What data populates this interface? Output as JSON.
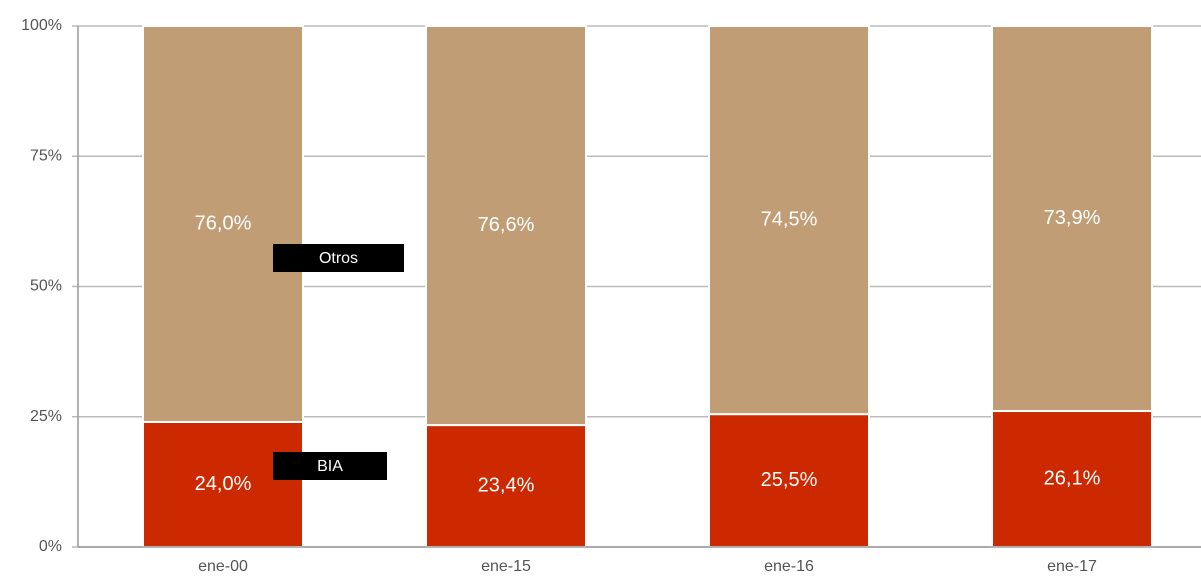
{
  "chart_data": {
    "type": "stacked_bar",
    "categories": [
      "ene-00",
      "ene-15",
      "ene-16",
      "ene-17"
    ],
    "series": [
      {
        "name": "BIA",
        "color": "#cc2900",
        "values": [
          24.0,
          23.4,
          25.5,
          26.1
        ],
        "value_labels": [
          "24,0%",
          "23,4%",
          "25,5%",
          "26,1%"
        ]
      },
      {
        "name": "Otros",
        "color": "#c19d76",
        "values": [
          76.0,
          76.6,
          74.5,
          73.9
        ],
        "value_labels": [
          "76,0%",
          "76,6%",
          "74,5%",
          "73,9%"
        ]
      }
    ],
    "ylim": [
      0,
      100
    ],
    "yticks": [
      {
        "value": 0,
        "label": "0%"
      },
      {
        "value": 25,
        "label": "25%"
      },
      {
        "value": 50,
        "label": "50%"
      },
      {
        "value": 75,
        "label": "75%"
      },
      {
        "value": 100,
        "label": "100%"
      }
    ],
    "grid": true
  }
}
